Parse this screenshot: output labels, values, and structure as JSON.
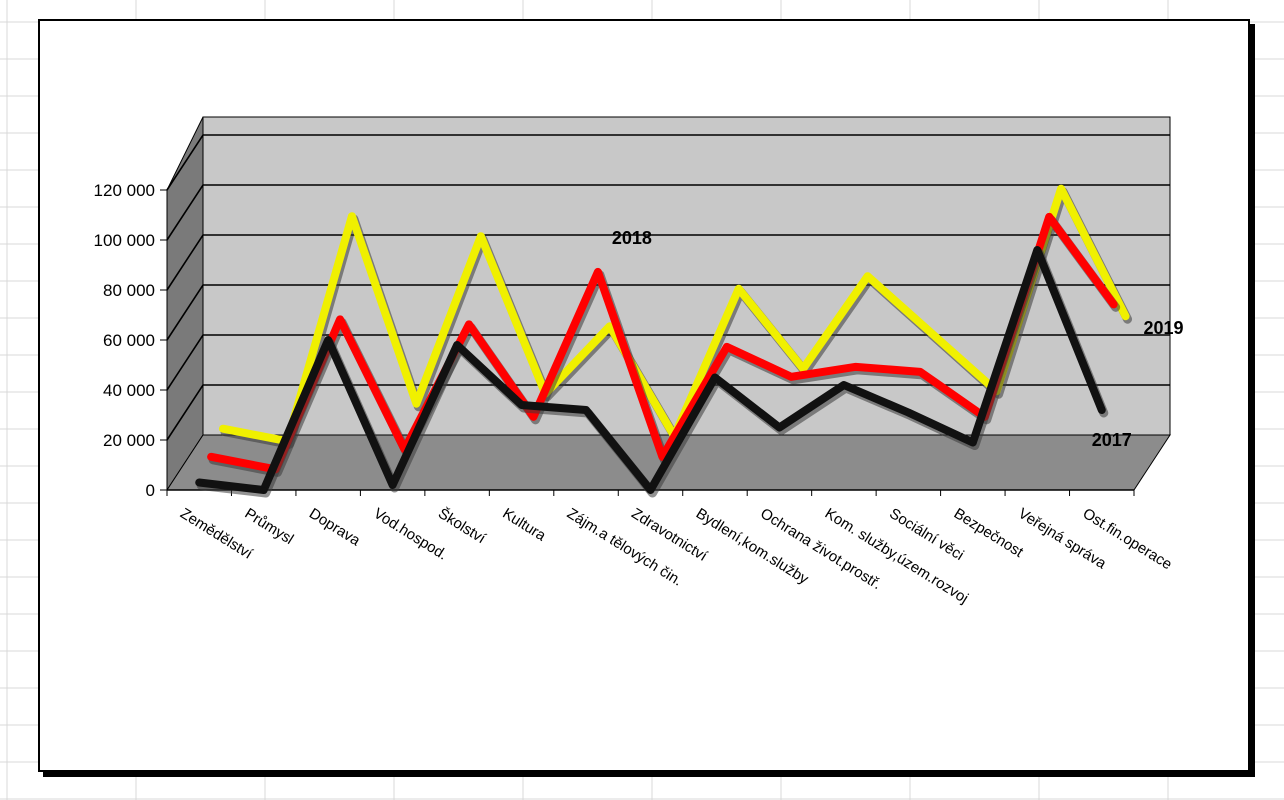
{
  "colors": {
    "back_wall": "#c8c8c8",
    "floor": "#8c8c8c",
    "side_wall": "#7a7a7a",
    "gridline": "#000000",
    "sheet_grid": "#d9d9d9"
  },
  "chart_data": {
    "type": "line",
    "style": "3d",
    "title": "",
    "xlabel": "",
    "ylabel": "",
    "ylim": [
      0,
      120000
    ],
    "y_ticks": [
      0,
      20000,
      40000,
      60000,
      80000,
      100000,
      120000
    ],
    "y_tick_labels": [
      "0",
      "20 000",
      "40 000",
      "60 000",
      "80 000",
      "100 000",
      "120 000"
    ],
    "grid": true,
    "legend": "none",
    "categories": [
      "Zemědělství",
      "Průmysl",
      "Doprava",
      "Vod.hospod.",
      "Školství",
      "Kultura",
      "Zájm.a tělových čin.",
      "Zdravotnictví",
      "Bydlení,kom.služby",
      "Ochrana život.prostř.",
      "Kom. služby,územ.rozvoj",
      "Sociální věci",
      "Bezpečnost",
      "Veřejná správa",
      "Ost.fin.operace"
    ],
    "series": [
      {
        "name": "2019",
        "color": "#f0f000",
        "values": [
          10000,
          5000,
          95000,
          20000,
          87000,
          24000,
          51000,
          7000,
          66000,
          34000,
          71000,
          48000,
          25000,
          106000,
          55000
        ],
        "label_index": 14
      },
      {
        "name": "2018",
        "color": "#ff0000",
        "values": [
          6000,
          1000,
          61000,
          9000,
          59000,
          22000,
          80000,
          6000,
          50000,
          38000,
          42000,
          40000,
          22000,
          102000,
          67000
        ],
        "label_index": 6
      },
      {
        "name": "2017",
        "color": "#111111",
        "values": [
          3000,
          0,
          60000,
          2000,
          58000,
          34000,
          32000,
          0,
          45000,
          25000,
          42000,
          31000,
          19000,
          96000,
          32000
        ],
        "label_index": 14
      }
    ]
  }
}
